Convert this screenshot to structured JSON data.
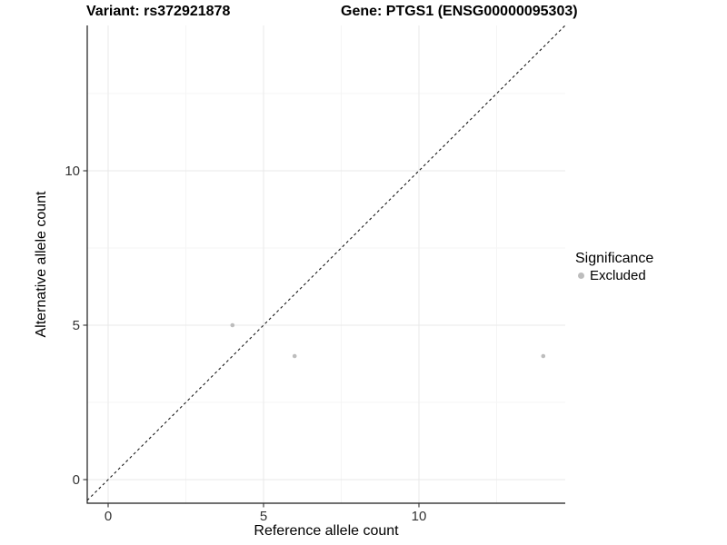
{
  "colors": {
    "background": "#ffffff",
    "axis_line": "#1a1a1a",
    "tick_label": "#333333",
    "grid_major": "#e9e9e9",
    "grid_minor": "#f5f5f5",
    "point": "#bdbdbd",
    "identity_line": "#1a1a1a"
  },
  "chart_data": {
    "type": "scatter",
    "title_left": "Variant: rs372921878",
    "title_right": "Gene: PTGS1 (ENSG00000095303)",
    "xlabel": "Reference allele count",
    "ylabel": "Alternative allele count",
    "xlim": [
      -0.7,
      14.7
    ],
    "ylim": [
      -0.7,
      14.7
    ],
    "x_major_ticks": [
      0,
      5,
      10
    ],
    "y_major_ticks": [
      0,
      5,
      10
    ],
    "x_minor_gridlines": [
      2.5,
      7.5,
      12.5
    ],
    "y_minor_gridlines": [
      2.5,
      7.5,
      12.5
    ],
    "grid": "major+minor",
    "axis_lines": "left+bottom",
    "identity_line": {
      "style": "dashed",
      "equation": "y = x"
    },
    "series": [
      {
        "name": "Excluded",
        "color": "#bdbdbd",
        "points": [
          {
            "x": 4,
            "y": 5
          },
          {
            "x": 6,
            "y": 4
          },
          {
            "x": 14,
            "y": 4
          }
        ]
      }
    ],
    "legend": {
      "title": "Significance",
      "position": "right",
      "items": [
        {
          "label": "Excluded",
          "color": "#bdbdbd"
        }
      ]
    }
  }
}
